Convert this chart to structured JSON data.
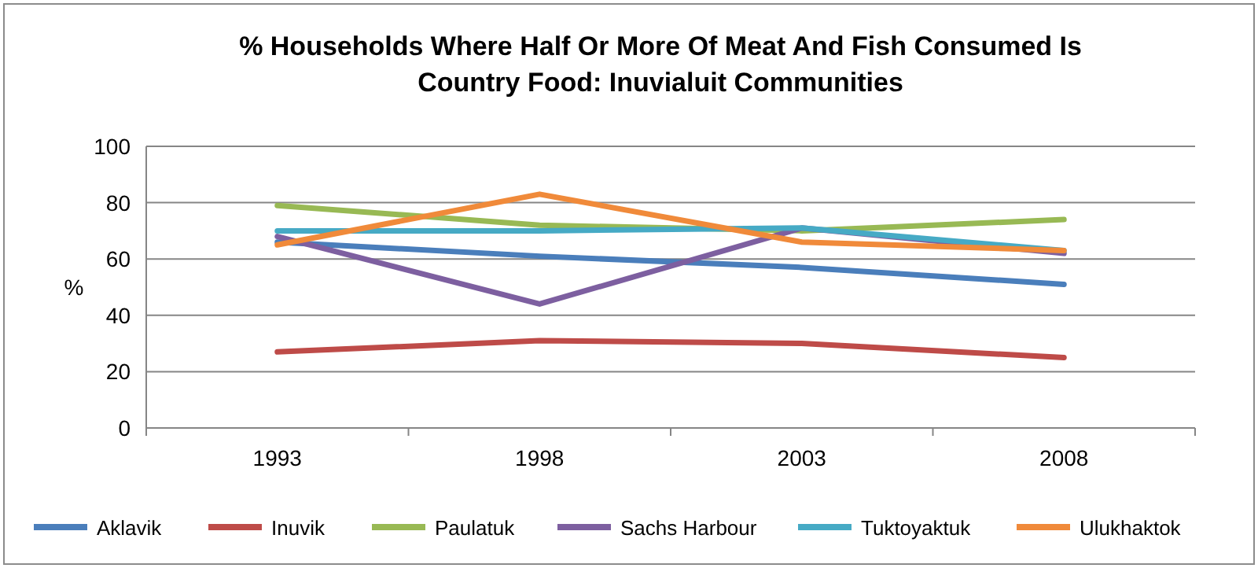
{
  "chart_data": {
    "type": "line",
    "title": "% Households Where Half Or More Of Meat And Fish Consumed Is Country Food: Inuvialuit Communities",
    "ylabel": "%",
    "categories": [
      "1993",
      "1998",
      "2003",
      "2008"
    ],
    "ylim": [
      0,
      100
    ],
    "yticks": [
      0,
      20,
      40,
      60,
      80,
      100
    ],
    "grid": "y",
    "legend": "bottom",
    "marker": "none",
    "line_style": "solid",
    "series": [
      {
        "name": "Aklavik",
        "color": "#4a7ebb",
        "values": [
          66,
          61,
          57,
          51
        ]
      },
      {
        "name": "Inuvik",
        "color": "#be4b48",
        "values": [
          27,
          31,
          30,
          25
        ]
      },
      {
        "name": "Paulatuk",
        "color": "#98b954",
        "values": [
          79,
          72,
          70,
          74
        ]
      },
      {
        "name": "Sachs Harbour",
        "color": "#7d5fa0",
        "values": [
          68,
          44,
          71,
          62
        ]
      },
      {
        "name": "Tuktoyaktuk",
        "color": "#46aac5",
        "values": [
          70,
          70,
          71,
          63
        ]
      },
      {
        "name": "Ulukhaktok",
        "color": "#f08a3a",
        "values": [
          65,
          83,
          66,
          63
        ]
      }
    ]
  }
}
